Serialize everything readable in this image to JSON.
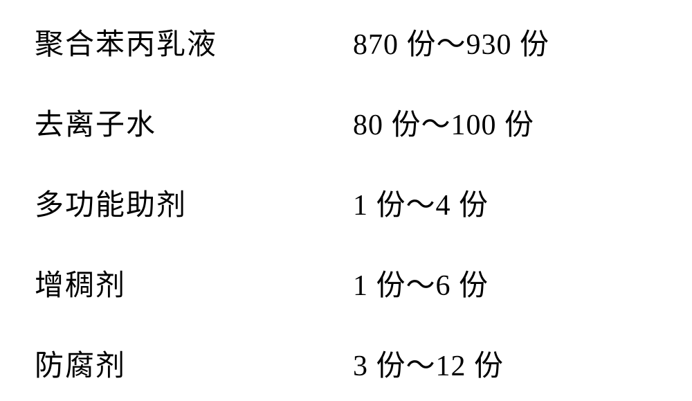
{
  "table": {
    "background_color": "#ffffff",
    "text_color": "#000000",
    "font_family": "SimSun",
    "label_fontsize": 42,
    "value_fontsize": 42,
    "row_spacing": 55,
    "label_column_width": 460,
    "rows": [
      {
        "label": "聚合苯丙乳液",
        "value": "870 份～930 份"
      },
      {
        "label": "去离子水",
        "value": "80 份～100 份"
      },
      {
        "label": "多功能助剂",
        "value": "1 份～4 份"
      },
      {
        "label": "增稠剂",
        "value": "1 份～6 份"
      },
      {
        "label": "防腐剂",
        "value": "3 份～12 份"
      }
    ]
  }
}
